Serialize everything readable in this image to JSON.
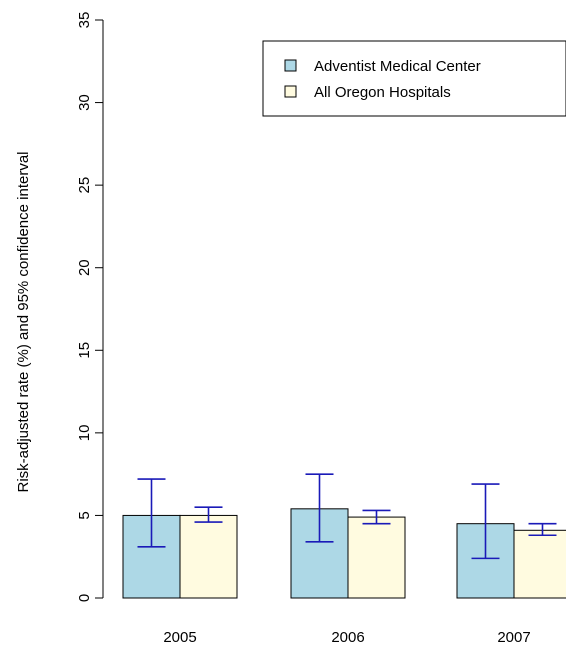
{
  "chart_data": {
    "type": "bar",
    "title": "",
    "xlabel": "",
    "ylabel": "Risk-adjusted rate (%) and 95% confidence interval",
    "ylim": [
      0,
      35
    ],
    "yticks": [
      0,
      5,
      10,
      15,
      20,
      25,
      30,
      35
    ],
    "categories": [
      "2005",
      "2006",
      "2007"
    ],
    "legend_position": "top-right",
    "grid": false,
    "series": [
      {
        "name": "Adventist Medical Center",
        "color": "#add8e6",
        "values": [
          5.0,
          5.4,
          4.5
        ],
        "ci_low": [
          3.1,
          3.4,
          2.4
        ],
        "ci_high": [
          7.2,
          7.5,
          6.9
        ]
      },
      {
        "name": "All Oregon Hospitals",
        "color": "#fffbe0",
        "values": [
          5.0,
          4.9,
          4.1
        ],
        "ci_low": [
          4.6,
          4.5,
          3.8
        ],
        "ci_high": [
          5.5,
          5.3,
          4.5
        ]
      }
    ],
    "error_bar_color": "#1a1ab8"
  }
}
